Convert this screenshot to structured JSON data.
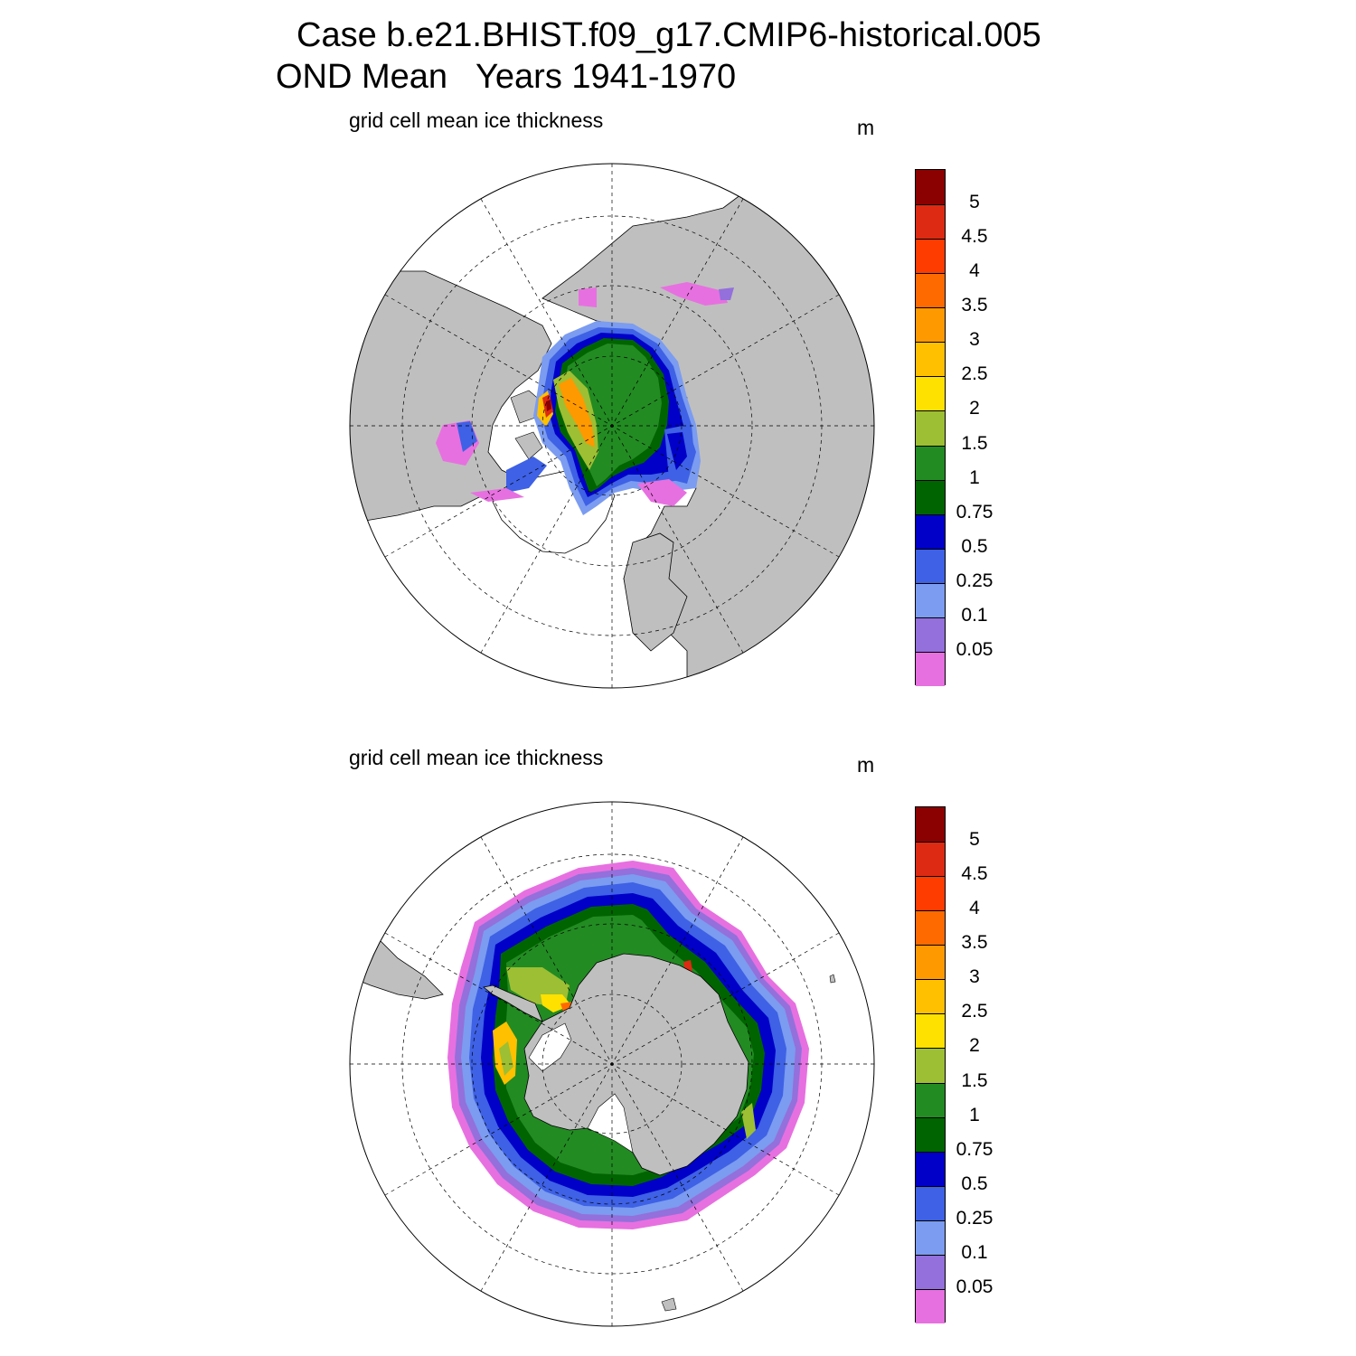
{
  "title_line1": "Case b.e21.BHIST.f09_g17.CMIP6-historical.005",
  "title_line2": "OND Mean   Years 1941-1970",
  "panels": [
    {
      "hemisphere": "north",
      "title": "grid cell mean ice thickness",
      "units": "m"
    },
    {
      "hemisphere": "south",
      "title": "grid cell mean ice thickness",
      "units": "m"
    }
  ],
  "colorbar": {
    "labels": [
      "5",
      "4.5",
      "4",
      "3.5",
      "3",
      "2.5",
      "2",
      "1.5",
      "1",
      "0.75",
      "0.5",
      "0.25",
      "0.1",
      "0.05"
    ],
    "colors": [
      "#8b0000",
      "#dd2a12",
      "#ff3c00",
      "#ff6a00",
      "#ff9900",
      "#ffc000",
      "#ffe100",
      "#9dbf33",
      "#228b22",
      "#006400",
      "#0000c8",
      "#3e61e5",
      "#7b9cf0",
      "#9370db",
      "#e770e0"
    ]
  },
  "colors": {
    "land": "#bfbfbf",
    "ocean": "#ffffff"
  }
}
